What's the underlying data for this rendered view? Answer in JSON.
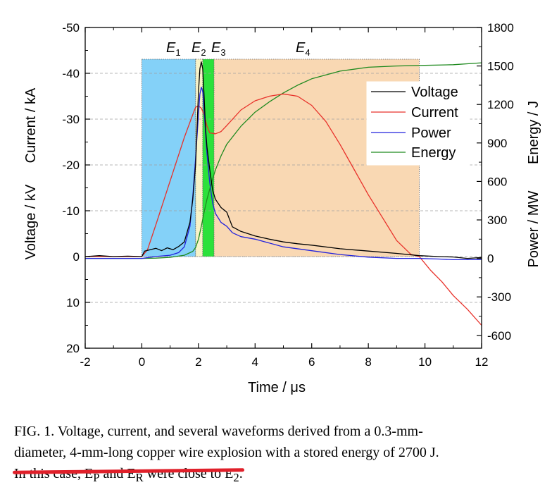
{
  "chart_data": {
    "type": "line",
    "x_axis": {
      "label": "Time / μs",
      "range": [
        -2,
        12
      ],
      "ticks": [
        "-2",
        "0",
        "2",
        "4",
        "6",
        "8",
        "10",
        "12"
      ]
    },
    "y_left": {
      "label_current": "Current / kA",
      "label_voltage": "Voltage / kV",
      "range": [
        20,
        -50
      ],
      "inverted": true,
      "ticks": [
        "-50",
        "-40",
        "-30",
        "-20",
        "-10",
        "0",
        "10",
        "20"
      ]
    },
    "y_right": {
      "label_energy": "Energy / J",
      "label_power": "Power / MW",
      "range": [
        -700,
        1800
      ],
      "ticks": [
        "1800",
        "1500",
        "1200",
        "900",
        "600",
        "300",
        "0",
        "-300",
        "-600"
      ]
    },
    "grid": "horizontal dashed at left-axis ticks",
    "legend_position": "right",
    "regions": [
      {
        "label": "E",
        "sub": "1",
        "x_start": 0.0,
        "x_end": 1.9,
        "color": "#84d1f8"
      },
      {
        "label": "E",
        "sub": "2",
        "x_start": 1.9,
        "x_end": 2.15,
        "color": "#f8f3c8"
      },
      {
        "label": "E",
        "sub": "3",
        "x_start": 2.15,
        "x_end": 2.55,
        "color": "#2ce13b"
      },
      {
        "label": "E",
        "sub": "4",
        "x_start": 2.55,
        "x_end": 9.8,
        "color": "#f9d8b3"
      }
    ],
    "series": [
      {
        "name": "Voltage",
        "color": "#000000",
        "axis": "left",
        "x": [
          -2,
          -1.5,
          -1,
          -0.5,
          0,
          0.1,
          0.3,
          0.5,
          0.7,
          0.9,
          1.1,
          1.3,
          1.5,
          1.7,
          1.8,
          1.9,
          1.95,
          2.0,
          2.05,
          2.1,
          2.15,
          2.2,
          2.25,
          2.3,
          2.4,
          2.5,
          2.6,
          2.8,
          3.0,
          3.2,
          3.5,
          4.0,
          4.5,
          5.0,
          5.5,
          6.0,
          7.0,
          8.0,
          9.0,
          9.8,
          10.5,
          11.0,
          11.5,
          12.0
        ],
        "y": [
          0,
          -0.2,
          0,
          -0.1,
          0,
          -1.2,
          -1.5,
          -1.8,
          -1.3,
          -1.9,
          -1.5,
          -2.2,
          -3.2,
          -7.5,
          -12.5,
          -20,
          -28,
          -36,
          -41,
          -42.5,
          -41,
          -35,
          -28,
          -24,
          -19,
          -14.5,
          -12.5,
          -10.7,
          -9.7,
          -6.5,
          -5.5,
          -4.5,
          -3.8,
          -3.2,
          -2.8,
          -2.5,
          -1.7,
          -1.2,
          -0.7,
          -0.2,
          0,
          0.1,
          0.4,
          0.2
        ]
      },
      {
        "name": "Current",
        "color": "#e8312a",
        "axis": "left",
        "x": [
          -2,
          -1,
          0,
          0.2,
          0.5,
          1.0,
          1.5,
          1.8,
          1.9,
          2.0,
          2.1,
          2.2,
          2.3,
          2.4,
          2.6,
          2.8,
          3.0,
          3.5,
          4.0,
          4.5,
          5.0,
          5.5,
          6.0,
          6.5,
          7.0,
          7.5,
          8.0,
          8.5,
          9.0,
          9.5,
          9.8,
          10.2,
          10.6,
          11.0,
          11.5,
          12.0
        ],
        "y": [
          0,
          0,
          0,
          -1.5,
          -7,
          -16.5,
          -26,
          -31,
          -32.6,
          -32.9,
          -32.4,
          -31,
          -28.5,
          -27,
          -26.8,
          -27.3,
          -28.6,
          -32,
          -34,
          -35,
          -35.5,
          -35,
          -33,
          -29.5,
          -24.5,
          -19,
          -13.5,
          -8.5,
          -3.5,
          -0.5,
          0,
          3,
          5.5,
          8.5,
          11.5,
          15
        ]
      },
      {
        "name": "Power",
        "color": "#2222dd",
        "axis": "right",
        "x": [
          -2,
          -1,
          -0.5,
          0,
          0.5,
          1.0,
          1.3,
          1.5,
          1.7,
          1.8,
          1.9,
          2.0,
          2.05,
          2.1,
          2.15,
          2.2,
          2.25,
          2.3,
          2.4,
          2.5,
          2.6,
          2.8,
          3.0,
          3.2,
          3.5,
          4.0,
          5.0,
          6.0,
          7.0,
          8.0,
          9.0,
          9.8,
          10.5,
          11.0,
          12.0
        ],
        "y": [
          0,
          0,
          0,
          0,
          15,
          25,
          45,
          90,
          250,
          480,
          780,
          1120,
          1280,
          1335,
          1300,
          1160,
          980,
          820,
          590,
          430,
          350,
          280,
          250,
          200,
          170,
          150,
          90,
          60,
          30,
          10,
          0,
          0,
          -5,
          -10,
          -10
        ]
      },
      {
        "name": "Energy",
        "color": "#1f8a1f",
        "axis": "right",
        "x": [
          -2,
          -1,
          0,
          0.5,
          1.0,
          1.5,
          1.8,
          1.9,
          2.0,
          2.1,
          2.2,
          2.3,
          2.4,
          2.5,
          2.6,
          2.8,
          3.0,
          3.5,
          4.0,
          4.5,
          5.0,
          5.5,
          6.0,
          7.0,
          8.0,
          9.0,
          10.0,
          11.0,
          12.0
        ],
        "y": [
          0,
          0,
          0,
          2,
          8,
          25,
          55,
          85,
          150,
          250,
          360,
          460,
          540,
          620,
          690,
          800,
          890,
          1030,
          1140,
          1220,
          1290,
          1350,
          1400,
          1460,
          1490,
          1500,
          1505,
          1510,
          1525
        ]
      }
    ]
  },
  "caption": {
    "line1": "FIG. 1. Voltage, current, and several waveforms derived from a 0.3-mm-",
    "line2": "diameter, 4-mm-long copper wire explosion with a stored energy of 2700 J.",
    "line3": "In this case, E",
    "line3_sub1": "P",
    "line3_mid": " and E",
    "line3_sub2": "R",
    "line3_mid2": " were close to E",
    "line3_sub3": "2",
    "line3_end": "."
  },
  "colors": {
    "strikethrough": "#e0202a"
  }
}
